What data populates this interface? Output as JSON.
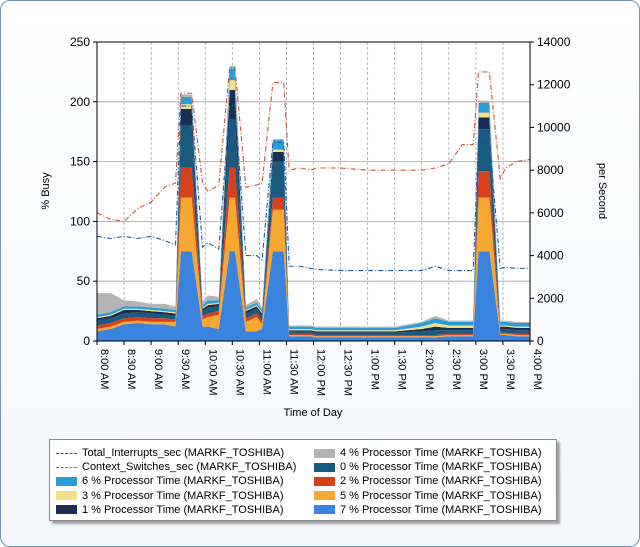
{
  "chart_data": {
    "type": "area",
    "xlabel": "Time of Day",
    "ylabel_left": "% Busy",
    "ylabel_right": "per Second",
    "ylim_left": [
      0,
      250
    ],
    "ylim_right": [
      0,
      14000
    ],
    "grid": true,
    "legend_position": "bottom",
    "x_ticks": [
      "8:00 AM",
      "8:30 AM",
      "9:00 AM",
      "9:30 AM",
      "10:00 AM",
      "10:30 AM",
      "11:00 AM",
      "11:30 AM",
      "12:00 PM",
      "12:30 PM",
      "1:00 PM",
      "1:30 PM",
      "2:00 PM",
      "2:30 PM",
      "3:00 PM",
      "3:30 PM",
      "4:00 PM"
    ],
    "y_ticks_left": [
      "0",
      "50",
      "100",
      "150",
      "200",
      "250"
    ],
    "y_ticks_right": [
      "0",
      "2000",
      "4000",
      "6000",
      "8000",
      "10000",
      "12000",
      "14000"
    ],
    "x_hours": [
      8.0,
      8.25,
      8.5,
      8.75,
      9.0,
      9.25,
      9.45,
      9.55,
      9.75,
      9.95,
      10.05,
      10.25,
      10.45,
      10.55,
      10.75,
      10.95,
      11.05,
      11.25,
      11.45,
      11.55,
      11.75,
      11.95,
      12.05,
      12.5,
      13.0,
      13.5,
      14.0,
      14.25,
      14.5,
      14.75,
      14.95,
      15.05,
      15.25,
      15.45,
      15.55,
      15.75,
      16.0
    ],
    "series": [
      {
        "name": "7 % Processor Time (MARKF_TOSHIBA)",
        "color": "#3a84e0",
        "stack": 0,
        "values": [
          8,
          10,
          14,
          15,
          14,
          14,
          12,
          75,
          75,
          12,
          12,
          10,
          75,
          75,
          8,
          8,
          10,
          75,
          75,
          4,
          4,
          4,
          3,
          3,
          3,
          3,
          3,
          3,
          4,
          4,
          4,
          75,
          75,
          5,
          5,
          4,
          4
        ]
      },
      {
        "name": "5 % Processor Time (MARKF_TOSHIBA)",
        "color": "#f7a832",
        "stack": 1,
        "values": [
          2,
          2,
          2,
          2,
          2,
          2,
          4,
          45,
          45,
          6,
          8,
          12,
          45,
          45,
          8,
          12,
          4,
          35,
          35,
          1,
          1,
          1,
          1,
          1,
          1,
          1,
          1,
          1,
          1,
          1,
          1,
          45,
          45,
          1,
          1,
          1,
          1
        ]
      },
      {
        "name": "2 % Processor Time (MARKF_TOSHIBA)",
        "color": "#d8401a",
        "stack": 2,
        "values": [
          3,
          3,
          3,
          3,
          3,
          3,
          2,
          25,
          25,
          3,
          3,
          3,
          25,
          25,
          3,
          3,
          3,
          10,
          10,
          1,
          1,
          1,
          1,
          1,
          1,
          1,
          1,
          1,
          1,
          1,
          1,
          22,
          22,
          1,
          1,
          1,
          1
        ]
      },
      {
        "name": "0 % Processor Time (MARKF_TOSHIBA)",
        "color": "#1a5a80",
        "stack": 3,
        "values": [
          4,
          4,
          4,
          4,
          4,
          3,
          3,
          35,
          35,
          4,
          5,
          4,
          40,
          40,
          4,
          4,
          4,
          30,
          30,
          2,
          2,
          2,
          2,
          2,
          2,
          2,
          3,
          4,
          3,
          3,
          3,
          35,
          35,
          3,
          3,
          3,
          3
        ]
      },
      {
        "name": "1 % Processor Time (MARKF_TOSHIBA)",
        "color": "#1a2e54",
        "stack": 4,
        "values": [
          2,
          2,
          3,
          2,
          2,
          2,
          2,
          14,
          14,
          2,
          2,
          2,
          25,
          25,
          2,
          2,
          2,
          8,
          8,
          1,
          1,
          1,
          1,
          1,
          1,
          1,
          2,
          3,
          2,
          2,
          2,
          10,
          10,
          2,
          2,
          2,
          2
        ]
      },
      {
        "name": "3 % Processor Time (MARKF_TOSHIBA)",
        "color": "#f5e08a",
        "stack": 5,
        "values": [
          1,
          1,
          1,
          1,
          1,
          1,
          1,
          4,
          4,
          1,
          1,
          1,
          8,
          8,
          1,
          1,
          1,
          2,
          2,
          1,
          1,
          1,
          1,
          1,
          1,
          1,
          2,
          3,
          2,
          2,
          2,
          4,
          4,
          1,
          1,
          1,
          1
        ]
      },
      {
        "name": "6 % Processor Time (MARKF_TOSHIBA)",
        "color": "#2a9cd6",
        "stack": 6,
        "values": [
          2,
          2,
          2,
          2,
          2,
          2,
          2,
          6,
          6,
          2,
          3,
          2,
          10,
          10,
          2,
          2,
          2,
          8,
          8,
          2,
          2,
          2,
          2,
          2,
          2,
          2,
          3,
          4,
          3,
          3,
          3,
          8,
          8,
          3,
          3,
          3,
          3
        ]
      },
      {
        "name": "4 % Processor Time (MARKF_TOSHIBA)",
        "color": "#b4b4b4",
        "stack": 7,
        "values": [
          18,
          16,
          5,
          4,
          3,
          4,
          3,
          2,
          2,
          3,
          4,
          3,
          2,
          2,
          2,
          3,
          2,
          1,
          1,
          1,
          1,
          1,
          1,
          1,
          1,
          1,
          1,
          2,
          1,
          1,
          1,
          2,
          2,
          1,
          1,
          1,
          1
        ]
      },
      {
        "name": "Total_Interrupts_sec (MARKF_TOSHIBA)",
        "color": "#1e5aa8",
        "axis": "right",
        "style": "dash-dot",
        "values": [
          4900,
          4800,
          4900,
          4800,
          4900,
          4700,
          4500,
          11000,
          11000,
          4400,
          4600,
          4300,
          11000,
          11000,
          4000,
          4000,
          3800,
          9300,
          9300,
          3500,
          3500,
          3400,
          3350,
          3300,
          3300,
          3300,
          3300,
          3500,
          3300,
          3300,
          3300,
          9500,
          9500,
          3400,
          3450,
          3400,
          3400
        ]
      },
      {
        "name": "Context_Switches_sec (MARKF_TOSHIBA)",
        "color": "#c8573a",
        "axis": "right",
        "style": "dash-dot",
        "values": [
          6000,
          5700,
          5600,
          6200,
          6500,
          7200,
          7400,
          11600,
          11600,
          7400,
          7000,
          7300,
          12800,
          12800,
          7200,
          7300,
          7400,
          12100,
          12100,
          8000,
          8100,
          8000,
          8100,
          8100,
          8000,
          8000,
          8000,
          8100,
          8300,
          9200,
          9200,
          12600,
          12600,
          7600,
          8100,
          8400,
          8500
        ]
      }
    ]
  },
  "legend": {
    "left": [
      {
        "label": "Total_Interrupts_sec (MARKF_TOSHIBA)",
        "color": "#1e5aa8",
        "kind": "line"
      },
      {
        "label": "Context_Switches_sec (MARKF_TOSHIBA)",
        "color": "#c8573a",
        "kind": "line"
      },
      {
        "label": "6 % Processor Time (MARKF_TOSHIBA)",
        "color": "#2a9cd6",
        "kind": "area"
      },
      {
        "label": "3 % Processor Time (MARKF_TOSHIBA)",
        "color": "#f5e08a",
        "kind": "area"
      },
      {
        "label": "1 % Processor Time (MARKF_TOSHIBA)",
        "color": "#1a2e54",
        "kind": "area"
      }
    ],
    "right": [
      {
        "label": "4 % Processor Time (MARKF_TOSHIBA)",
        "color": "#b4b4b4",
        "kind": "area"
      },
      {
        "label": "0 % Processor Time (MARKF_TOSHIBA)",
        "color": "#1a5a80",
        "kind": "area"
      },
      {
        "label": "2 % Processor Time (MARKF_TOSHIBA)",
        "color": "#d8401a",
        "kind": "area"
      },
      {
        "label": "5 % Processor Time (MARKF_TOSHIBA)",
        "color": "#f7a832",
        "kind": "area"
      },
      {
        "label": "7 % Processor Time (MARKF_TOSHIBA)",
        "color": "#3a84e0",
        "kind": "area"
      }
    ]
  }
}
